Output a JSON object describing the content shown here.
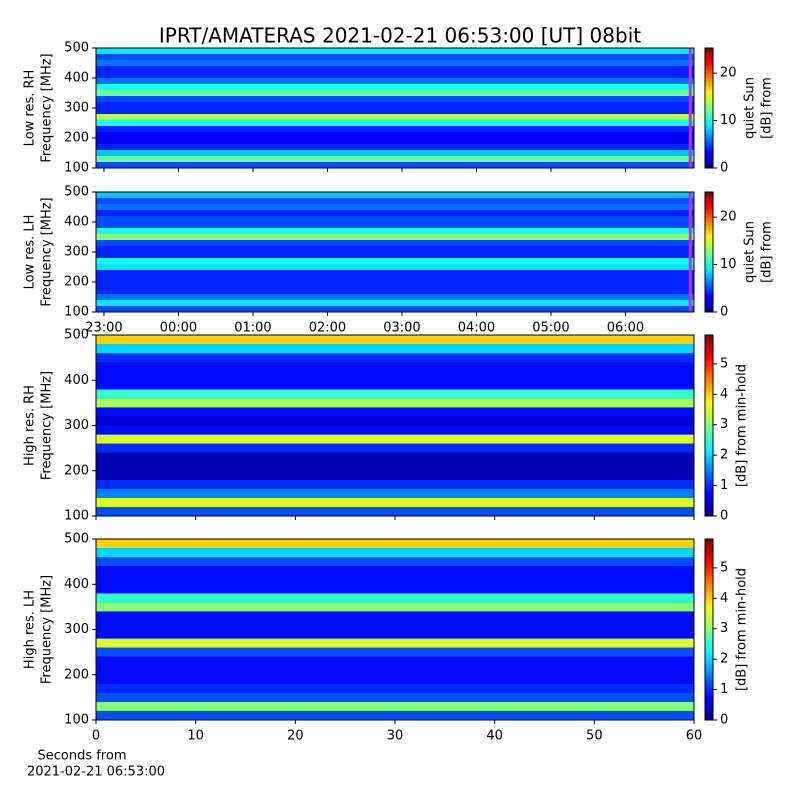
{
  "figure": {
    "title": "IPRT/AMATERAS 2021-02-21 06:53:00 [UT]   08bit",
    "xlabel": [
      "Seconds from",
      "2021-02-21 06:53:00"
    ]
  },
  "chart_data": [
    {
      "type": "heatmap",
      "cmap": "jet",
      "ylabel": [
        "Low res. RH",
        "Frequency [MHz]"
      ],
      "xlim": [
        -1.107,
        6.92
      ],
      "xticks": [
        {
          "value": -1,
          "label": "23:00"
        },
        {
          "value": 0,
          "label": "00:00"
        },
        {
          "value": 1,
          "label": "01:00"
        },
        {
          "value": 2,
          "label": "02:00"
        },
        {
          "value": 3,
          "label": "03:00"
        },
        {
          "value": 4,
          "label": "04:00"
        },
        {
          "value": 5,
          "label": "05:00"
        },
        {
          "value": 6,
          "label": "06:00"
        }
      ],
      "show_xtick_labels": false,
      "ylim": [
        100,
        500
      ],
      "yticks": [
        100,
        200,
        300,
        400,
        500
      ],
      "freq_bins": [
        100,
        120,
        140,
        160,
        180,
        200,
        220,
        240,
        260,
        280,
        300,
        320,
        340,
        360,
        380,
        400,
        420,
        440,
        460,
        480,
        500
      ],
      "values": [
        5,
        12,
        8,
        4,
        3,
        3,
        4,
        10,
        14,
        4,
        4,
        5,
        12,
        10,
        6,
        4,
        4,
        6,
        5,
        9
      ],
      "colorbar": {
        "clim": [
          0,
          25.3
        ],
        "ticks": [
          0,
          10,
          20
        ],
        "label": [
          "[dB] from",
          "quiet Sun"
        ]
      },
      "marker": {
        "x": 6.87,
        "color": "#e020e0"
      }
    },
    {
      "type": "heatmap",
      "cmap": "jet",
      "ylabel": [
        "Low res. LH",
        "Frequency [MHz]"
      ],
      "xlim": [
        -1.107,
        6.92
      ],
      "xticks": [
        {
          "value": -1,
          "label": "23:00"
        },
        {
          "value": 0,
          "label": "00:00"
        },
        {
          "value": 1,
          "label": "01:00"
        },
        {
          "value": 2,
          "label": "02:00"
        },
        {
          "value": 3,
          "label": "03:00"
        },
        {
          "value": 4,
          "label": "04:00"
        },
        {
          "value": 5,
          "label": "05:00"
        },
        {
          "value": 6,
          "label": "06:00"
        }
      ],
      "show_xtick_labels": true,
      "ylim": [
        100,
        500
      ],
      "yticks": [
        100,
        200,
        300,
        400,
        500
      ],
      "freq_bins": [
        100,
        120,
        140,
        160,
        180,
        200,
        220,
        240,
        260,
        280,
        300,
        320,
        340,
        360,
        380,
        400,
        420,
        440,
        460,
        480,
        500
      ],
      "values": [
        5,
        9,
        6,
        4,
        4,
        4,
        4,
        9,
        10,
        4,
        4,
        5,
        13,
        10,
        5,
        5,
        4,
        6,
        5,
        8
      ],
      "colorbar": {
        "clim": [
          0,
          25.3
        ],
        "ticks": [
          0,
          10,
          20
        ],
        "label": [
          "[dB] from",
          "quiet Sun"
        ]
      },
      "marker": {
        "x": 6.87,
        "color": "#e020e0"
      }
    },
    {
      "type": "heatmap",
      "cmap": "jet",
      "ylabel": [
        "High res. RH",
        "Frequency [MHz]"
      ],
      "xlim": [
        0,
        60
      ],
      "xticks": [
        0,
        10,
        20,
        30,
        40,
        50,
        60
      ],
      "show_xtick_labels": false,
      "ylim": [
        100,
        500
      ],
      "yticks": [
        100,
        200,
        300,
        400,
        500
      ],
      "freq_bins": [
        100,
        120,
        140,
        160,
        180,
        200,
        220,
        240,
        260,
        280,
        300,
        320,
        340,
        360,
        380,
        400,
        420,
        440,
        460,
        480,
        500
      ],
      "values": [
        1.2,
        3.5,
        1.5,
        1,
        0.3,
        0.3,
        0.3,
        1,
        3.5,
        0.8,
        0.5,
        0.8,
        3.2,
        2.5,
        0.8,
        0.8,
        0.8,
        1,
        2,
        4
      ],
      "colorbar": {
        "clim": [
          0,
          5.95
        ],
        "ticks": [
          0,
          1,
          2,
          3,
          4,
          5
        ],
        "label": [
          "[dB] from min-hold"
        ]
      }
    },
    {
      "type": "heatmap",
      "cmap": "jet",
      "ylabel": [
        "High res. LH",
        "Frequency [MHz]"
      ],
      "xlim": [
        0,
        60
      ],
      "xticks": [
        0,
        10,
        20,
        30,
        40,
        50,
        60
      ],
      "show_xtick_labels": true,
      "ylim": [
        100,
        500
      ],
      "yticks": [
        100,
        200,
        300,
        400,
        500
      ],
      "freq_bins": [
        100,
        120,
        140,
        160,
        180,
        200,
        220,
        240,
        260,
        280,
        300,
        320,
        340,
        360,
        380,
        400,
        420,
        440,
        460,
        480,
        500
      ],
      "values": [
        1.2,
        3,
        1.2,
        1,
        0.8,
        0.8,
        0.8,
        1.2,
        3.5,
        0.8,
        0.8,
        0.8,
        3,
        2.5,
        0.8,
        0.8,
        0.8,
        1.2,
        2,
        4
      ],
      "colorbar": {
        "clim": [
          0,
          5.95
        ],
        "ticks": [
          0,
          1,
          2,
          3,
          4,
          5
        ],
        "label": [
          "[dB] from min-hold"
        ]
      }
    }
  ]
}
